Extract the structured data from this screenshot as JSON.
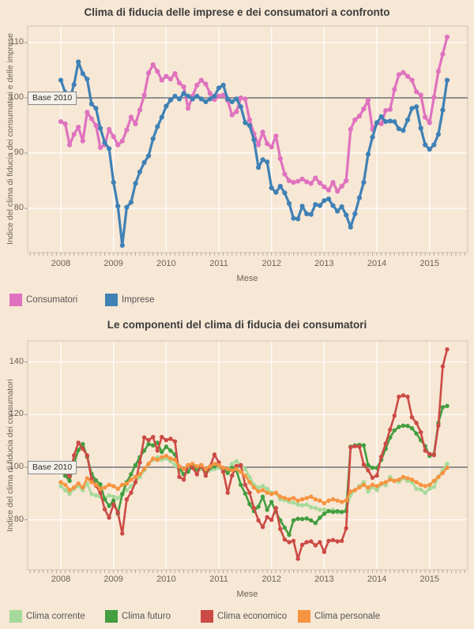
{
  "page": {
    "background_color": "#F7E7D5",
    "title_color": "#3C3C3C",
    "axis_text_color": "#6B6257",
    "legend_text_color": "#575757",
    "gridline_color": "#FFFFFF",
    "baseline_color": "#909090"
  },
  "chart_data": [
    {
      "type": "line",
      "title": "Clima di  fiducia delle imprese e dei consumatori a confronto",
      "xlabel": "Mese",
      "ylabel": "Indice del clima di fiducia dei consumatori e delle imprese",
      "base_label": "Base 2010",
      "base_value": 100,
      "x_tick_labels": [
        "2008",
        "2009",
        "2010",
        "2011",
        "2012",
        "2013",
        "2014",
        "2015"
      ],
      "x_start": "2008-01",
      "x_end": "2015-05",
      "x_step": "1 month",
      "y_ticks": [
        80,
        90,
        100,
        110
      ],
      "ylim": [
        72,
        113
      ],
      "grid": true,
      "legend_position": "bottom-left",
      "series": [
        {
          "name": "Consumatori",
          "color": "#DF72BE",
          "values": [
            95.7,
            95.3,
            91.5,
            93.4,
            94.7,
            92.2,
            97.4,
            96.2,
            95.0,
            91.0,
            91.5,
            94.3,
            93.0,
            91.5,
            92.2,
            94.2,
            96.5,
            95.3,
            97.8,
            100.5,
            104.5,
            106.0,
            104.8,
            103.2,
            103.9,
            103.4,
            104.4,
            102.7,
            102.0,
            98.1,
            100.3,
            102.3,
            103.2,
            102.5,
            100.8,
            99.7,
            100.3,
            100.5,
            99.5,
            96.9,
            97.5,
            100.0,
            99.8,
            96.0,
            93.5,
            91.5,
            93.8,
            91.7,
            91.1,
            93.1,
            89.0,
            86.2,
            85.0,
            84.7,
            84.9,
            85.3,
            84.8,
            84.5,
            85.5,
            84.6,
            83.9,
            83.3,
            84.7,
            83.1,
            84.0,
            85.0,
            94.3,
            96.0,
            96.7,
            98.0,
            99.6,
            94.3,
            95.5,
            95.3,
            97.7,
            97.9,
            101.5,
            104.2,
            104.6,
            103.9,
            103.2,
            101.1,
            100.5,
            96.5,
            95.5,
            100.1,
            104.8,
            107.9,
            111.0
          ]
        },
        {
          "name": "Imprese",
          "color": "#3F81B5",
          "values": [
            103.2,
            101.0,
            99.7,
            102.4,
            106.5,
            104.4,
            103.4,
            98.9,
            98.1,
            94.5,
            91.9,
            90.8,
            84.7,
            80.4,
            73.3,
            80.2,
            81.1,
            84.5,
            86.6,
            88.3,
            89.5,
            92.6,
            94.8,
            96.5,
            98.5,
            99.6,
            100.3,
            99.8,
            100.8,
            100.3,
            99.8,
            100.3,
            99.8,
            99.3,
            99.8,
            100.3,
            101.8,
            102.3,
            99.8,
            99.3,
            99.8,
            98.4,
            95.5,
            95.0,
            92.4,
            87.4,
            88.8,
            88.4,
            83.7,
            82.9,
            84.0,
            82.8,
            80.9,
            78.2,
            78.1,
            80.4,
            79.0,
            78.9,
            80.7,
            80.5,
            81.4,
            81.7,
            80.5,
            79.5,
            80.3,
            78.8,
            76.6,
            79.0,
            81.9,
            84.7,
            89.8,
            92.9,
            95.5,
            96.6,
            95.7,
            95.8,
            95.7,
            94.4,
            94.1,
            96.0,
            98.1,
            98.4,
            94.5,
            91.5,
            90.7,
            91.5,
            93.4,
            97.8,
            103.2
          ]
        }
      ]
    },
    {
      "type": "line",
      "title": "Le componenti del clima di fiducia dei consumatori",
      "xlabel": "Mese",
      "ylabel": "Indice del clima di fiducia dei consumatori",
      "base_label": "Base 2010",
      "base_value": 100,
      "x_tick_labels": [
        "2008",
        "2009",
        "2010",
        "2011",
        "2012",
        "2013",
        "2014",
        "2015"
      ],
      "x_start": "2008-01",
      "x_end": "2015-05",
      "x_step": "1 month",
      "y_ticks": [
        80,
        100,
        120,
        140
      ],
      "ylim": [
        61,
        148
      ],
      "grid": true,
      "legend_position": "bottom-left",
      "series": [
        {
          "name": "Clima corrente",
          "color": "#A6DA9B",
          "values": [
            92.8,
            91.3,
            89.8,
            91.8,
            92.8,
            91.3,
            93.8,
            89.8,
            89.3,
            88.8,
            88.3,
            89.3,
            88.8,
            88.3,
            89.8,
            91.3,
            92.8,
            94.3,
            96.3,
            98.8,
            101.3,
            102.8,
            103.8,
            102.8,
            103.3,
            102.3,
            100.8,
            98.3,
            97.3,
            98.8,
            99.8,
            98.3,
            99.3,
            97.8,
            98.8,
            99.3,
            99.8,
            98.8,
            97.8,
            101.3,
            102.3,
            100.8,
            99.3,
            96.3,
            93.3,
            92.3,
            92.8,
            91.8,
            90.3,
            90.1,
            87.8,
            87.5,
            86.8,
            86.5,
            85.8,
            85.5,
            85.8,
            84.8,
            84.5,
            83.8,
            83.9,
            83.5,
            83.8,
            82.8,
            83.0,
            83.8,
            89.3,
            91.3,
            92.8,
            94.3,
            90.8,
            92.5,
            91.3,
            93.5,
            93.2,
            96.3,
            94.8,
            94.5,
            95.8,
            94.8,
            94.3,
            91.8,
            91.5,
            90.3,
            91.8,
            92.5,
            96.3,
            98.8,
            101.3
          ]
        },
        {
          "name": "Clima futuro",
          "color": "#429E3F",
          "values": [
            100.0,
            96.8,
            94.8,
            101.5,
            106.5,
            108.8,
            104.0,
            97.5,
            95.0,
            93.5,
            87.8,
            85.3,
            87.3,
            82.3,
            89.8,
            94.3,
            97.3,
            100.8,
            103.8,
            106.3,
            108.8,
            108.3,
            109.3,
            105.8,
            107.8,
            106.3,
            104.8,
            99.8,
            97.3,
            98.3,
            100.8,
            99.3,
            100.3,
            97.8,
            99.8,
            100.3,
            100.8,
            99.8,
            97.8,
            99.8,
            98.8,
            93.3,
            90.0,
            86.0,
            83.3,
            85.0,
            88.8,
            83.8,
            86.8,
            83.0,
            79.8,
            77.0,
            74.3,
            79.8,
            80.4,
            80.3,
            80.5,
            79.8,
            78.8,
            80.8,
            82.3,
            83.3,
            83.0,
            83.3,
            83.0,
            83.3,
            107.8,
            108.3,
            108.5,
            108.3,
            100.8,
            99.8,
            99.7,
            102.8,
            107.0,
            111.3,
            114.0,
            115.3,
            115.8,
            115.7,
            114.8,
            112.8,
            110.3,
            108.0,
            104.3,
            105.0,
            116.8,
            122.8,
            123.3
          ]
        },
        {
          "name": "Clima economico",
          "color": "#CC4A45",
          "values": [
            99.8,
            98.0,
            96.5,
            104.5,
            109.3,
            107.0,
            104.5,
            95.5,
            93.0,
            90.3,
            84.0,
            80.8,
            85.8,
            82.8,
            74.8,
            87.8,
            90.3,
            94.3,
            101.8,
            111.3,
            110.3,
            111.5,
            106.3,
            111.5,
            110.3,
            110.8,
            109.8,
            96.3,
            95.3,
            100.8,
            99.8,
            97.3,
            100.8,
            96.8,
            100.3,
            104.8,
            101.8,
            98.3,
            90.3,
            96.8,
            100.5,
            100.8,
            93.3,
            90.3,
            84.5,
            79.8,
            77.3,
            81.0,
            80.0,
            84.5,
            76.5,
            72.5,
            71.5,
            72.0,
            65.2,
            70.5,
            71.5,
            71.8,
            70.3,
            71.5,
            67.8,
            72.0,
            72.3,
            71.8,
            72.0,
            76.8,
            107.5,
            108.0,
            107.8,
            101.0,
            98.8,
            96.0,
            96.8,
            104.0,
            109.0,
            114.3,
            119.6,
            126.8,
            127.3,
            126.8,
            119.0,
            116.8,
            113.3,
            106.3,
            105.0,
            104.6,
            115.8,
            138.3,
            144.8
          ]
        },
        {
          "name": "Clima personale",
          "color": "#F79440",
          "values": [
            94.3,
            93.3,
            91.3,
            92.3,
            93.8,
            92.3,
            95.8,
            94.3,
            93.3,
            91.8,
            92.3,
            93.3,
            92.8,
            91.8,
            93.3,
            93.8,
            95.3,
            96.3,
            97.3,
            99.3,
            101.3,
            103.3,
            102.8,
            103.8,
            104.3,
            103.3,
            102.8,
            100.3,
            99.3,
            100.8,
            101.3,
            100.3,
            100.8,
            99.3,
            100.3,
            101.3,
            100.8,
            99.8,
            99.3,
            98.8,
            99.3,
            98.3,
            96.8,
            94.3,
            92.3,
            90.8,
            91.3,
            90.3,
            89.8,
            90.3,
            88.8,
            88.3,
            87.8,
            88.3,
            87.3,
            87.8,
            88.3,
            88.8,
            87.8,
            87.3,
            86.3,
            87.3,
            87.8,
            87.3,
            86.8,
            87.3,
            90.8,
            91.3,
            92.3,
            93.3,
            92.3,
            93.3,
            92.8,
            93.8,
            94.3,
            95.3,
            94.8,
            95.3,
            96.3,
            95.8,
            95.3,
            94.3,
            93.3,
            92.8,
            93.3,
            94.8,
            96.3,
            97.8,
            99.8
          ]
        }
      ]
    }
  ]
}
